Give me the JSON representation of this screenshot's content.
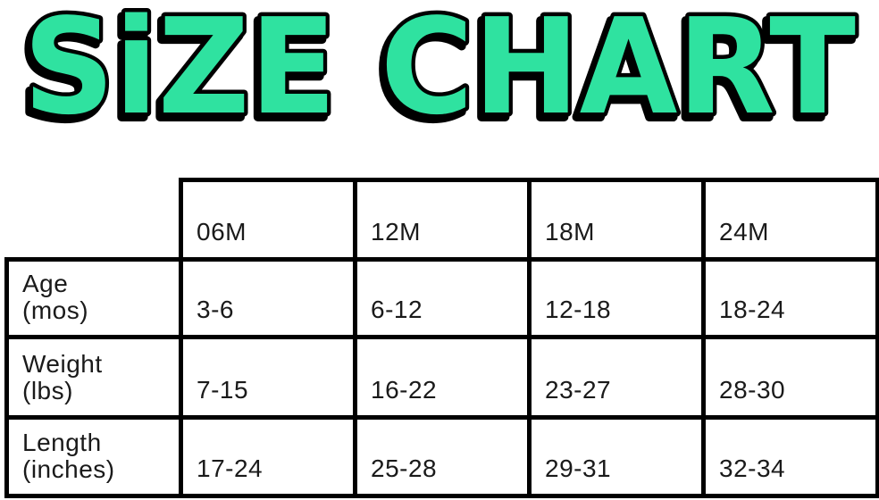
{
  "title": "SiZE CHART",
  "colors": {
    "title_fill": "#2FE2A0",
    "title_outline": "#000000",
    "table_border": "#000000",
    "text": "#1A1A1A",
    "background": "#FFFFFF"
  },
  "chart_data": {
    "type": "table",
    "title": "SiZE CHART",
    "columns": [
      "06M",
      "12M",
      "18M",
      "24M"
    ],
    "rows": [
      {
        "label": "Age (mos)",
        "label_line1": "Age",
        "label_line2": "(mos)",
        "values": [
          "3-6",
          "6-12",
          "12-18",
          "18-24"
        ]
      },
      {
        "label": "Weight (lbs)",
        "label_line1": "Weight",
        "label_line2": "(lbs)",
        "values": [
          "7-15",
          "16-22",
          "23-27",
          "28-30"
        ]
      },
      {
        "label": "Length (inches)",
        "label_line1": "Length",
        "label_line2": "(inches)",
        "values": [
          "17-24",
          "25-28",
          "29-31",
          "32-34"
        ]
      }
    ]
  }
}
